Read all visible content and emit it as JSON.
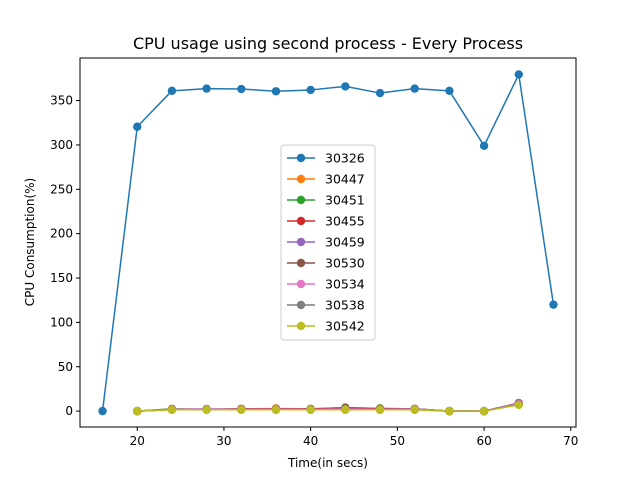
{
  "chart_data": {
    "type": "line",
    "title": "CPU usage using second process - Every Process",
    "xlabel": "Time(in secs)",
    "ylabel": "CPU Consumption(%)",
    "xlim": [
      13.4,
      70.6
    ],
    "ylim": [
      -17.9,
      398.0
    ],
    "xticks": [
      20,
      30,
      40,
      50,
      60,
      70
    ],
    "yticks": [
      0,
      50,
      100,
      150,
      200,
      250,
      300,
      350
    ],
    "grid": false,
    "legend_position": "center",
    "series": [
      {
        "name": "30326",
        "color": "#1f77b4",
        "points": [
          [
            16,
            0
          ],
          [
            20,
            320.5
          ],
          [
            24,
            361
          ],
          [
            28,
            363.5
          ],
          [
            32,
            363
          ],
          [
            36,
            360.5
          ],
          [
            40,
            362
          ],
          [
            44,
            366
          ],
          [
            48,
            358.5
          ],
          [
            52,
            363.5
          ],
          [
            56,
            361
          ],
          [
            60,
            299
          ],
          [
            64,
            379.5
          ],
          [
            68,
            120
          ]
        ]
      },
      {
        "name": "30447",
        "color": "#ff7f0e",
        "points": [
          [
            20,
            0
          ],
          [
            24,
            2.5
          ],
          [
            28,
            2
          ],
          [
            32,
            2.5
          ],
          [
            36,
            3
          ],
          [
            40,
            2.5
          ],
          [
            44,
            4
          ],
          [
            48,
            3
          ],
          [
            52,
            2.5
          ],
          [
            56,
            0
          ],
          [
            60,
            0
          ],
          [
            64,
            9
          ]
        ]
      },
      {
        "name": "30451",
        "color": "#2ca02c",
        "points": [
          [
            20,
            0
          ],
          [
            24,
            2.5
          ],
          [
            28,
            2
          ],
          [
            32,
            2.5
          ],
          [
            36,
            2.5
          ],
          [
            40,
            2.5
          ],
          [
            44,
            4
          ],
          [
            48,
            3
          ],
          [
            52,
            2.5
          ],
          [
            56,
            0
          ],
          [
            60,
            0
          ],
          [
            64,
            8.5
          ]
        ]
      },
      {
        "name": "30455",
        "color": "#d62728",
        "points": [
          [
            20,
            0
          ],
          [
            24,
            2
          ],
          [
            28,
            2
          ],
          [
            32,
            2.5
          ],
          [
            36,
            2.5
          ],
          [
            40,
            2.5
          ],
          [
            44,
            3
          ],
          [
            48,
            2.5
          ],
          [
            52,
            2.5
          ],
          [
            56,
            0
          ],
          [
            60,
            0
          ],
          [
            64,
            9
          ]
        ]
      },
      {
        "name": "30459",
        "color": "#9467bd",
        "points": [
          [
            20,
            0
          ],
          [
            24,
            2
          ],
          [
            28,
            2.5
          ],
          [
            32,
            2
          ],
          [
            36,
            2
          ],
          [
            40,
            2
          ],
          [
            44,
            2.5
          ],
          [
            48,
            2
          ],
          [
            52,
            2.5
          ],
          [
            56,
            0
          ],
          [
            60,
            0
          ],
          [
            64,
            9
          ]
        ]
      },
      {
        "name": "30530",
        "color": "#8c564b",
        "points": [
          [
            20,
            0
          ],
          [
            24,
            2
          ],
          [
            28,
            2
          ],
          [
            32,
            2
          ],
          [
            36,
            2
          ],
          [
            40,
            2
          ],
          [
            44,
            2
          ],
          [
            48,
            2
          ],
          [
            52,
            2
          ],
          [
            56,
            0
          ],
          [
            60,
            0
          ],
          [
            64,
            8
          ]
        ]
      },
      {
        "name": "30534",
        "color": "#e377c2",
        "points": [
          [
            20,
            0
          ],
          [
            24,
            2
          ],
          [
            28,
            2
          ],
          [
            32,
            2
          ],
          [
            36,
            2
          ],
          [
            40,
            2
          ],
          [
            44,
            2
          ],
          [
            48,
            2
          ],
          [
            52,
            2
          ],
          [
            56,
            0
          ],
          [
            60,
            0
          ],
          [
            64,
            8
          ]
        ]
      },
      {
        "name": "30538",
        "color": "#7f7f7f",
        "points": [
          [
            20,
            0
          ],
          [
            24,
            1.5
          ],
          [
            28,
            1.5
          ],
          [
            32,
            1.5
          ],
          [
            36,
            1.5
          ],
          [
            40,
            1.5
          ],
          [
            44,
            1.5
          ],
          [
            48,
            1.5
          ],
          [
            52,
            1.5
          ],
          [
            56,
            0
          ],
          [
            60,
            0
          ],
          [
            64,
            7.5
          ]
        ]
      },
      {
        "name": "30542",
        "color": "#bcbd22",
        "points": [
          [
            20,
            0
          ],
          [
            24,
            1.5
          ],
          [
            28,
            1.5
          ],
          [
            32,
            1.5
          ],
          [
            36,
            1.5
          ],
          [
            40,
            1.5
          ],
          [
            44,
            1.5
          ],
          [
            48,
            1.5
          ],
          [
            52,
            1.5
          ],
          [
            56,
            0
          ],
          [
            60,
            0
          ],
          [
            64,
            7
          ]
        ]
      }
    ]
  }
}
